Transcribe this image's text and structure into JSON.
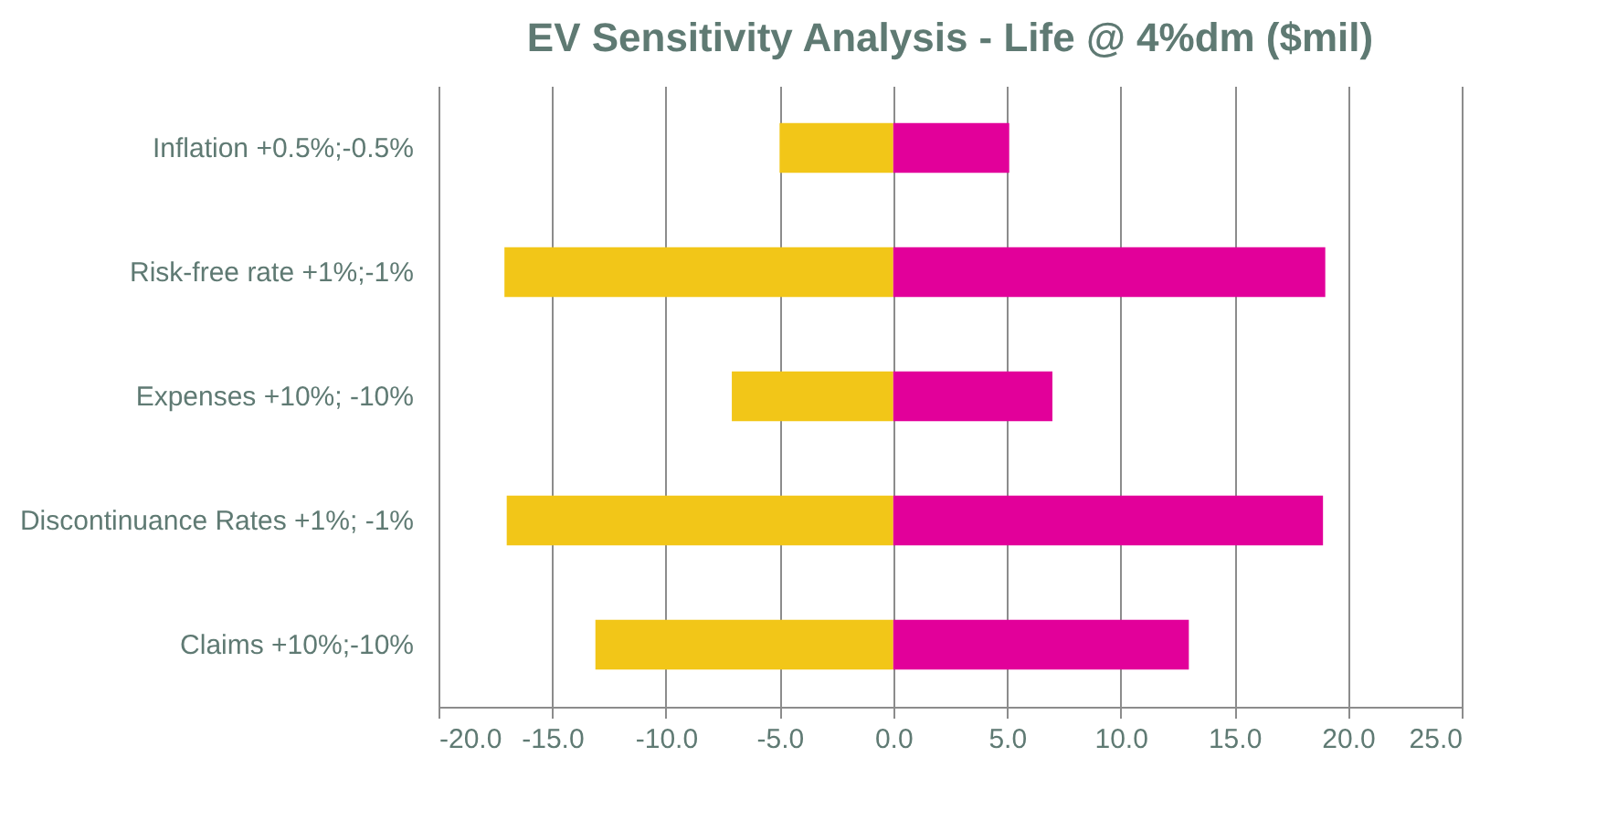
{
  "chart_data": {
    "type": "bar",
    "title": "EV Sensitivity  Analysis  - Life   @ 4%dm ($mil)",
    "orientation": "horizontal",
    "stacked": true,
    "categories": [
      "Inflation +0.5%;-0.5%",
      "Risk-free rate +1%;-1%",
      "Expenses +10%; -10%",
      "Discontinuance Rates +1%; -1%",
      "Claims +10%;-10%"
    ],
    "series": [
      {
        "color": "#f2c618",
        "values": [
          -5.0,
          -17.1,
          -7.1,
          -17.0,
          -13.1
        ]
      },
      {
        "color": "#e2009a",
        "values": [
          5.1,
          19.0,
          7.0,
          18.9,
          13.0
        ]
      }
    ],
    "xlim": [
      -20,
      25
    ],
    "xticks": [
      {
        "value": -20,
        "label": "-20.0"
      },
      {
        "value": -15,
        "label": "-15.0"
      },
      {
        "value": -10,
        "label": "-10.0"
      },
      {
        "value": -5,
        "label": "-5.0"
      },
      {
        "value": 0,
        "label": "0.0"
      },
      {
        "value": 5,
        "label": "5.0"
      },
      {
        "value": 10,
        "label": "10.0"
      },
      {
        "value": 15,
        "label": "15.0"
      },
      {
        "value": 20,
        "label": "20.0"
      },
      {
        "value": 25,
        "label": "25.0"
      }
    ],
    "grid": "x"
  }
}
